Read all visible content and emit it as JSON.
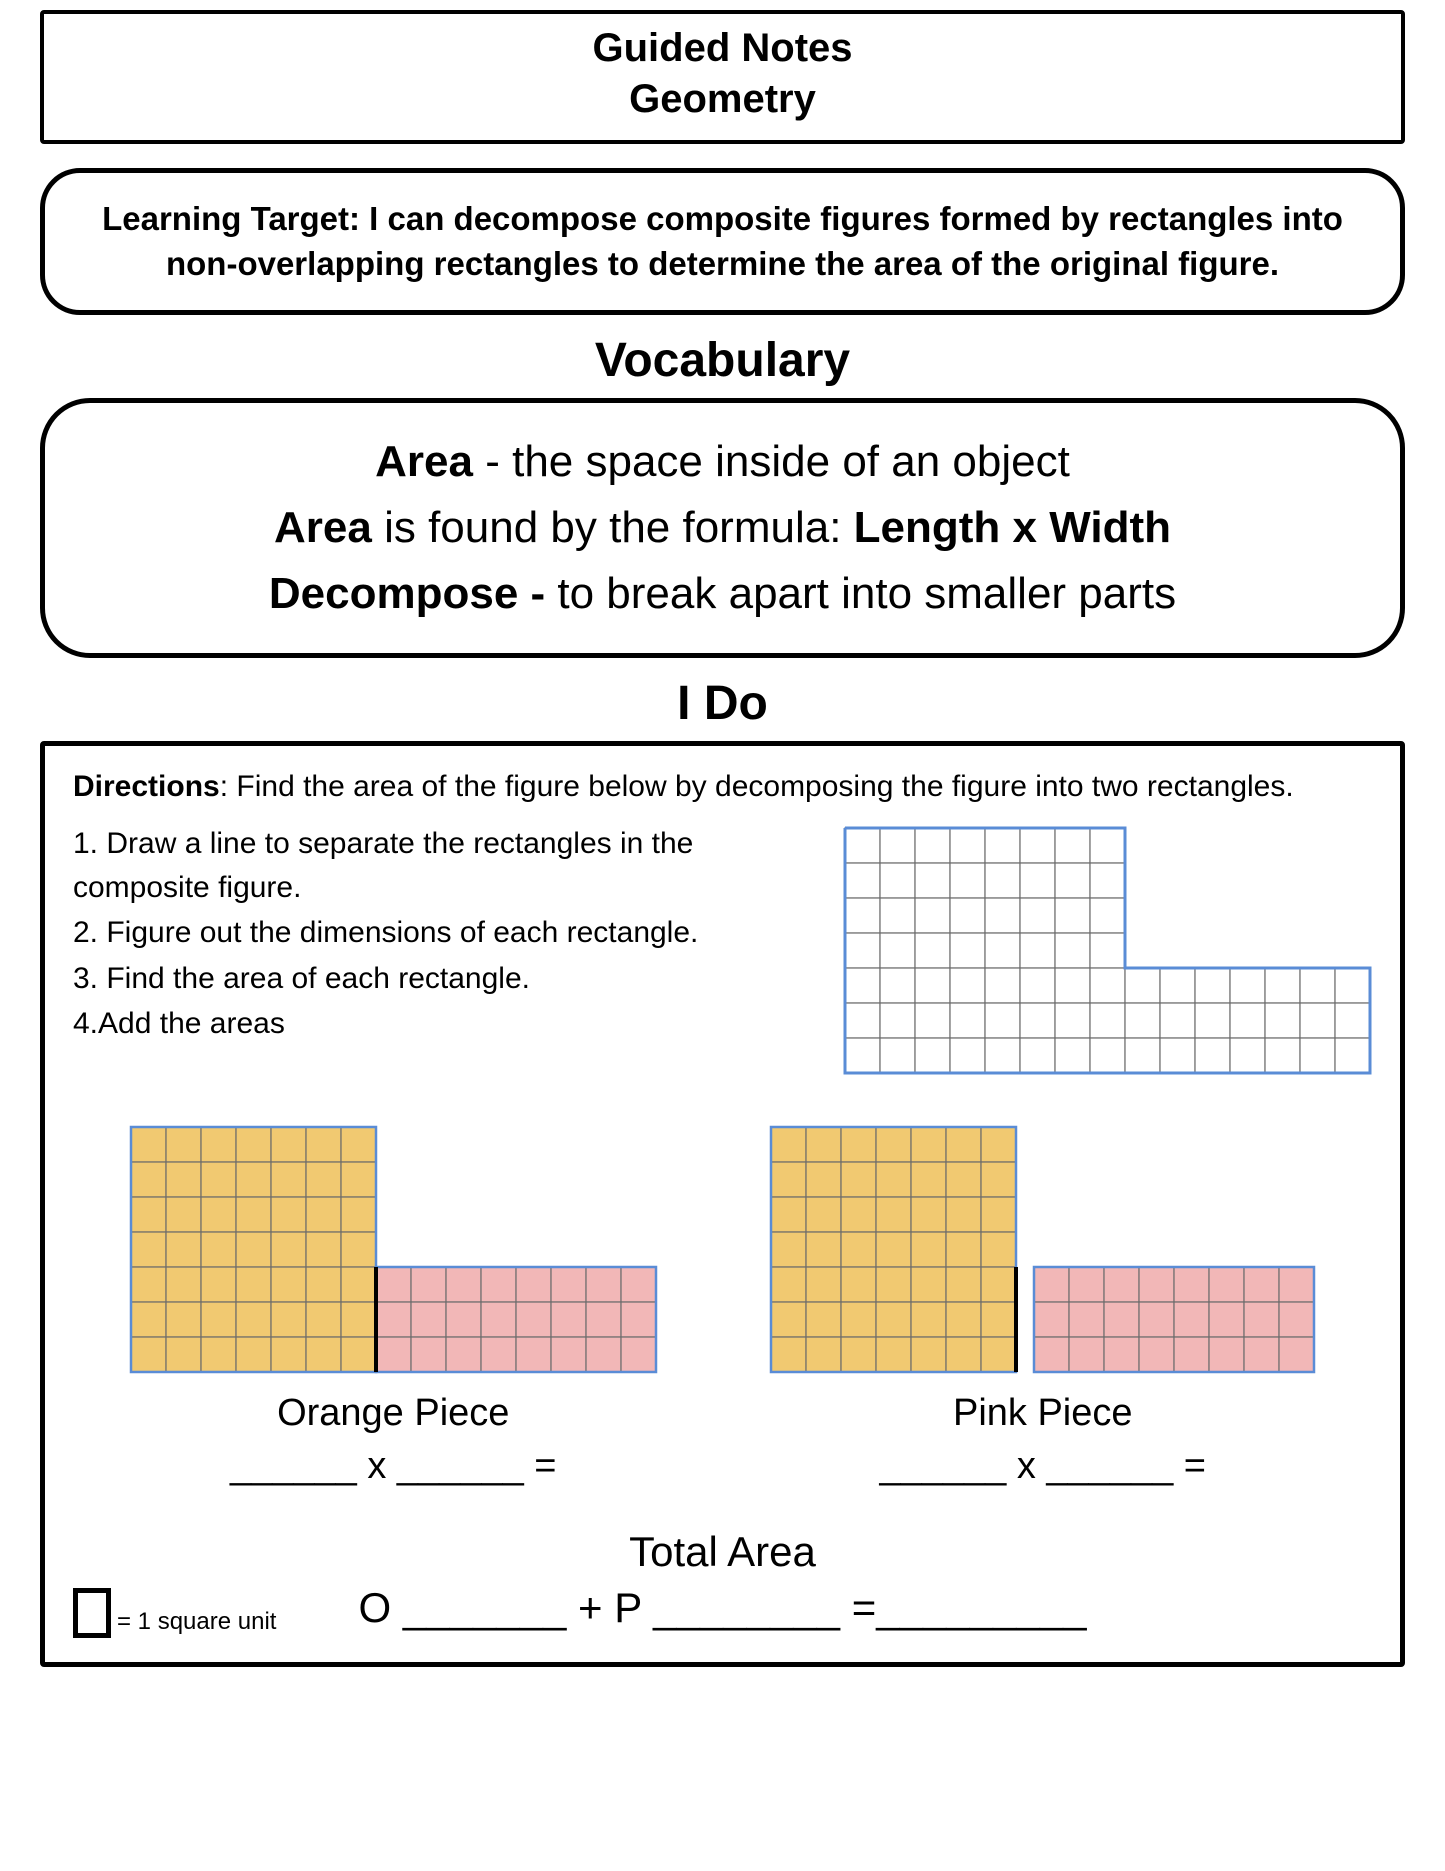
{
  "header": {
    "line1": "Guided Notes",
    "line2": "Geometry"
  },
  "learning_target": "Learning Target: I can decompose composite figures formed by rectangles into non-overlapping rectangles to determine the area of the original figure.",
  "vocabulary_heading": "Vocabulary",
  "vocab": {
    "area_term": "Area",
    "area_def": " - the space inside of an object",
    "area_formula_pre": " is found by the formula: ",
    "area_formula": "Length x Width",
    "decompose_term": "Decompose - ",
    "decompose_def": "to break apart into smaller parts"
  },
  "ido_heading": "I Do",
  "ido": {
    "directions_label": "Directions",
    "directions_text": ": Find the area of the figure below by decomposing the figure into two rectangles.",
    "steps": [
      "1. Draw a line to separate the rectangles in the composite figure.",
      "2. Figure out the dimensions of each rectangle.",
      "3. Find the area of each rectangle.",
      "4.Add the areas"
    ],
    "orange_label": "Orange Piece",
    "orange_blank": "______ x ______ =",
    "pink_label": "Pink Piece",
    "pink_blank": "______ x ______ =",
    "total_label": "Total Area",
    "total_eq": "O _______ + P ________ =_________",
    "legend": "= 1 square unit"
  },
  "colors": {
    "orange": "#f1c971",
    "pink": "#f2b7b7",
    "grid_blue": "#5a8cd6",
    "grid_gray": "#6b6b6b",
    "black": "#000000",
    "white": "#ffffff"
  },
  "figures": {
    "cell": 35,
    "outline": {
      "top_w": 8,
      "top_h": 4,
      "full_w": 15,
      "full_h": 7
    },
    "composite": {
      "orange_w": 7,
      "orange_h": 7,
      "pink_w": 8,
      "pink_h": 3
    }
  }
}
